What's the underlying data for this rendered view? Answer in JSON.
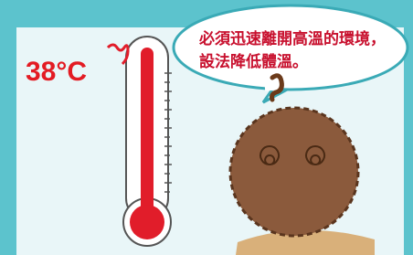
{
  "thermometer": {
    "label": "38°C"
  },
  "speech_bubble": {
    "lines": [
      "必須迅速離開高溫的環境，",
      "設法降低體溫。"
    ]
  }
}
